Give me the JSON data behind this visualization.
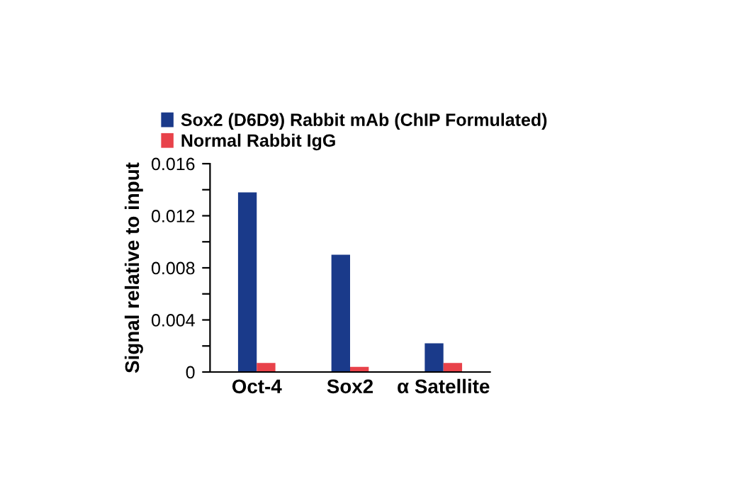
{
  "chart_data": {
    "type": "bar",
    "ylabel": "Signal relative to input",
    "categories": [
      "Oct-4",
      "Sox2",
      "α Satellite"
    ],
    "series": [
      {
        "name": "Sox2 (D6D9) Rabbit mAb (ChIP Formulated)",
        "color": "#1a3a8a",
        "values": [
          0.0138,
          0.009,
          0.0022
        ]
      },
      {
        "name": "Normal Rabbit IgG",
        "color": "#e8424a",
        "values": [
          0.0007,
          0.0004,
          0.0007
        ]
      }
    ],
    "ylim": [
      0,
      0.016
    ],
    "yticks": [
      0,
      {
        "value": 0.002,
        "label": null
      },
      0.004,
      {
        "value": 0.006,
        "label": null
      },
      0.008,
      {
        "value": 0.01,
        "label": null
      },
      0.012,
      {
        "value": 0.014,
        "label": null
      },
      0.016
    ],
    "legend": "top left",
    "grid": false
  }
}
